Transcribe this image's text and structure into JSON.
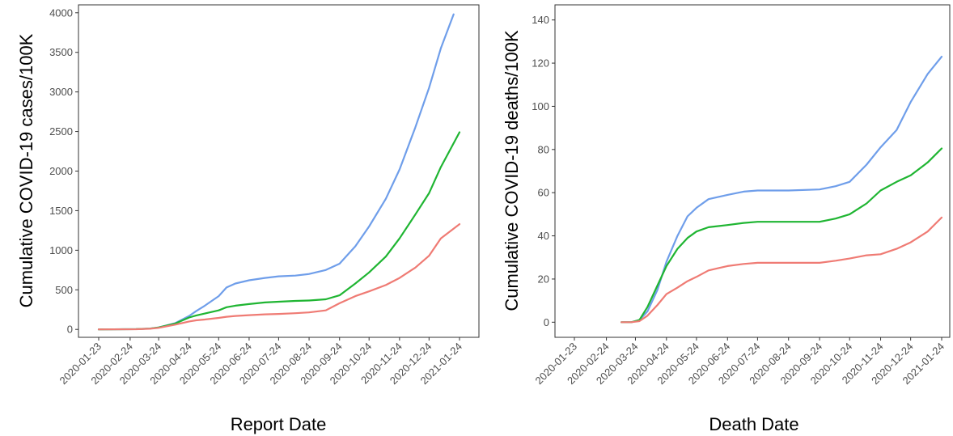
{
  "chart_data": [
    {
      "type": "line",
      "ylabel": "Cumulative COVID-19 cases/100K",
      "xlabel": "Report Date",
      "x_ticks": [
        "2020-01-23",
        "2020-02-24",
        "2020-03-24",
        "2020-04-24",
        "2020-05-24",
        "2020-06-24",
        "2020-07-24",
        "2020-08-24",
        "2020-09-24",
        "2020-10-24",
        "2020-11-24",
        "2020-12-24",
        "2021-01-24"
      ],
      "xlim": [
        "2020-01-23",
        "2021-01-24"
      ],
      "ylim": [
        -100,
        4100
      ],
      "y_ticks": [
        0,
        500,
        1000,
        1500,
        2000,
        2500,
        3000,
        3500,
        4000
      ],
      "grid": false,
      "series": [
        {
          "color": "#6f9eea",
          "x": [
            "2020-01-23",
            "2020-03-01",
            "2020-03-15",
            "2020-03-24",
            "2020-04-10",
            "2020-04-24",
            "2020-05-01",
            "2020-05-10",
            "2020-05-24",
            "2020-06-01",
            "2020-06-10",
            "2020-06-24",
            "2020-07-10",
            "2020-07-24",
            "2020-08-10",
            "2020-08-24",
            "2020-09-10",
            "2020-09-24",
            "2020-10-10",
            "2020-10-24",
            "2020-11-10",
            "2020-11-24",
            "2020-12-10",
            "2020-12-24",
            "2021-01-05",
            "2021-01-18"
          ],
          "y": [
            0,
            3,
            10,
            25,
            80,
            170,
            230,
            300,
            420,
            530,
            580,
            620,
            650,
            670,
            680,
            700,
            750,
            830,
            1050,
            1300,
            1650,
            2020,
            2550,
            3050,
            3550,
            3980
          ]
        },
        {
          "color": "#1fb532",
          "x": [
            "2020-01-23",
            "2020-03-01",
            "2020-03-15",
            "2020-03-24",
            "2020-04-10",
            "2020-04-24",
            "2020-05-01",
            "2020-05-10",
            "2020-05-24",
            "2020-06-01",
            "2020-06-10",
            "2020-06-24",
            "2020-07-10",
            "2020-07-24",
            "2020-08-10",
            "2020-08-24",
            "2020-09-10",
            "2020-09-24",
            "2020-10-10",
            "2020-10-24",
            "2020-11-10",
            "2020-11-24",
            "2020-12-10",
            "2020-12-24",
            "2021-01-05",
            "2021-01-24"
          ],
          "y": [
            0,
            3,
            10,
            25,
            75,
            150,
            175,
            200,
            240,
            280,
            300,
            320,
            340,
            350,
            360,
            365,
            380,
            430,
            580,
            720,
            920,
            1150,
            1450,
            1720,
            2050,
            2490
          ]
        },
        {
          "color": "#ef7b74",
          "x": [
            "2020-01-23",
            "2020-03-01",
            "2020-03-15",
            "2020-03-24",
            "2020-04-10",
            "2020-04-24",
            "2020-05-01",
            "2020-05-10",
            "2020-05-24",
            "2020-06-01",
            "2020-06-10",
            "2020-06-24",
            "2020-07-10",
            "2020-07-24",
            "2020-08-10",
            "2020-08-24",
            "2020-09-10",
            "2020-09-24",
            "2020-10-10",
            "2020-10-24",
            "2020-11-10",
            "2020-11-24",
            "2020-12-10",
            "2020-12-24",
            "2021-01-05",
            "2021-01-24"
          ],
          "y": [
            0,
            2,
            8,
            20,
            60,
            100,
            115,
            125,
            145,
            160,
            170,
            180,
            190,
            195,
            205,
            215,
            240,
            330,
            420,
            480,
            560,
            650,
            780,
            930,
            1150,
            1330
          ]
        }
      ]
    },
    {
      "type": "line",
      "ylabel": "Cumulative COVID-19 deaths/100K",
      "xlabel": "Death Date",
      "x_ticks": [
        "2020-01-23",
        "2020-02-24",
        "2020-03-24",
        "2020-04-24",
        "2020-05-24",
        "2020-06-24",
        "2020-07-24",
        "2020-08-24",
        "2020-09-24",
        "2020-10-24",
        "2020-11-24",
        "2020-12-24",
        "2021-01-24"
      ],
      "xlim": [
        "2020-01-23",
        "2021-01-24"
      ],
      "ylim": [
        -7,
        147
      ],
      "y_ticks": [
        0,
        20,
        40,
        60,
        80,
        100,
        120,
        140
      ],
      "grid": false,
      "series": [
        {
          "color": "#6f9eea",
          "x": [
            "2020-03-10",
            "2020-03-20",
            "2020-03-28",
            "2020-04-05",
            "2020-04-15",
            "2020-04-24",
            "2020-05-05",
            "2020-05-15",
            "2020-05-24",
            "2020-06-05",
            "2020-06-24",
            "2020-07-10",
            "2020-07-24",
            "2020-08-24",
            "2020-09-24",
            "2020-10-10",
            "2020-10-24",
            "2020-11-10",
            "2020-11-24",
            "2020-12-10",
            "2020-12-24",
            "2021-01-10",
            "2021-01-24"
          ],
          "y": [
            0,
            0,
            1,
            5,
            15,
            28,
            40,
            49,
            53,
            57,
            59,
            60.5,
            61,
            61,
            61.5,
            63,
            65,
            73,
            81,
            89,
            102,
            115,
            123
          ]
        },
        {
          "color": "#1fb532",
          "x": [
            "2020-03-10",
            "2020-03-20",
            "2020-03-28",
            "2020-04-05",
            "2020-04-15",
            "2020-04-24",
            "2020-05-05",
            "2020-05-15",
            "2020-05-24",
            "2020-06-05",
            "2020-06-24",
            "2020-07-10",
            "2020-07-24",
            "2020-08-24",
            "2020-09-24",
            "2020-10-10",
            "2020-10-24",
            "2020-11-10",
            "2020-11-24",
            "2020-12-10",
            "2020-12-24",
            "2021-01-10",
            "2021-01-24"
          ],
          "y": [
            0,
            0,
            1,
            7,
            17,
            26,
            34,
            39,
            42,
            44,
            45,
            46,
            46.5,
            46.5,
            46.5,
            48,
            50,
            55,
            61,
            65,
            68,
            74,
            80.5
          ]
        },
        {
          "color": "#ef7b74",
          "x": [
            "2020-03-10",
            "2020-03-20",
            "2020-03-28",
            "2020-04-05",
            "2020-04-15",
            "2020-04-24",
            "2020-05-05",
            "2020-05-15",
            "2020-05-24",
            "2020-06-05",
            "2020-06-24",
            "2020-07-10",
            "2020-07-24",
            "2020-08-24",
            "2020-09-24",
            "2020-10-10",
            "2020-10-24",
            "2020-11-10",
            "2020-11-24",
            "2020-12-10",
            "2020-12-24",
            "2021-01-10",
            "2021-01-24"
          ],
          "y": [
            0,
            0,
            0.5,
            3,
            8,
            13,
            16,
            19,
            21,
            24,
            26,
            27,
            27.5,
            27.5,
            27.5,
            28.5,
            29.5,
            31,
            31.5,
            34,
            37,
            42,
            48.5
          ]
        }
      ]
    }
  ]
}
